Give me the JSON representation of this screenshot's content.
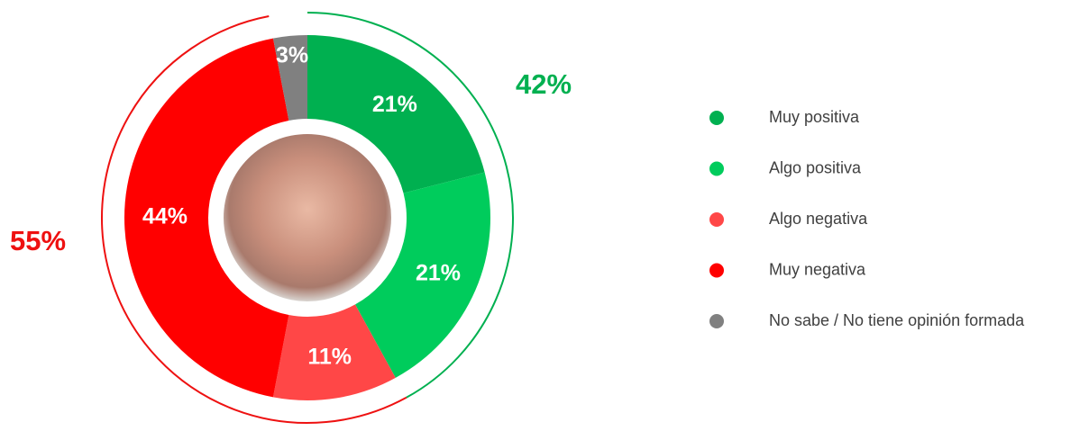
{
  "chart_data": {
    "type": "donut",
    "categories": [
      "Muy positiva",
      "Algo positiva",
      "Algo negativa",
      "Muy negativa",
      "No sabe / No tiene opinión formada"
    ],
    "values": [
      21,
      21,
      11,
      44,
      3
    ],
    "value_labels": [
      "21%",
      "21%",
      "11%",
      "44%",
      "3%"
    ],
    "colors": [
      "#00b050",
      "#00cc5c",
      "#ff4747",
      "#ff0000",
      "#808080"
    ],
    "totals": [
      {
        "value": 42,
        "label": "42%",
        "color": "#00b050"
      },
      {
        "value": 55,
        "label": "55%",
        "color": "#ee1111"
      }
    ]
  }
}
